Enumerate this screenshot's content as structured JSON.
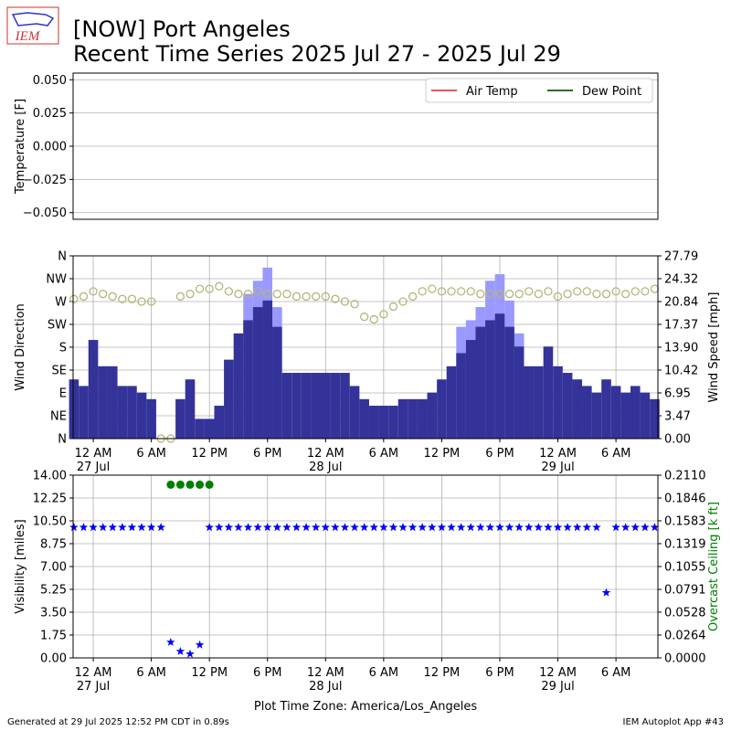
{
  "title": "[NOW] Port Angeles",
  "subtitle": "Recent Time Series 2025 Jul 27 - 2025 Jul 29",
  "logo_text": "IEM",
  "footer_left": "Generated at 29 Jul 2025 12:52 PM CDT in 0.89s",
  "footer_right": "IEM Autoplot App #43",
  "chart_data": [
    {
      "type": "line",
      "ylabel": "Temperature [F]",
      "xlim": [
        "2025-07-26 21:55",
        "2025-07-29 10:20"
      ],
      "ylim": [
        -0.055,
        0.055
      ],
      "yticks": [
        {
          "value": -0.05,
          "label": "−0.050"
        },
        {
          "value": -0.025,
          "label": "−0.025"
        },
        {
          "value": 0,
          "label": "0.000"
        },
        {
          "value": 0.025,
          "label": "0.025"
        },
        {
          "value": 0.05,
          "label": "0.050"
        }
      ],
      "grid": true,
      "legend": "upper right",
      "series": [
        {
          "name": "Air Temp",
          "color": "#e15759"
        },
        {
          "name": "Dew Point",
          "color": "#2d6a2d"
        }
      ]
    },
    {
      "type": "bar",
      "ylabel": "Wind Direction",
      "y2label": "Wind Speed [mph]",
      "xlim": [
        "2025-07-26 21:55",
        "2025-07-29 10:20"
      ],
      "ylim": [
        0,
        360
      ],
      "yticks": [
        {
          "value": 0,
          "label": "N"
        },
        {
          "value": 45,
          "label": "NE"
        },
        {
          "value": 90,
          "label": "E"
        },
        {
          "value": 135,
          "label": "SE"
        },
        {
          "value": 180,
          "label": "S"
        },
        {
          "value": 225,
          "label": "SW"
        },
        {
          "value": 270,
          "label": "W"
        },
        {
          "value": 315,
          "label": "NW"
        },
        {
          "value": 360,
          "label": "N"
        }
      ],
      "y2lim": [
        0,
        27.79
      ],
      "y2ticks": [
        {
          "value": 0,
          "label": "0.00"
        },
        3.47,
        6.95,
        10.42,
        {
          "value": 13.9,
          "label": "13.90"
        },
        17.37,
        20.84,
        24.32,
        27.79
      ],
      "xticks": [
        {
          "value": "2025-07-27 00:00",
          "label": "12 AM\n27 Jul"
        },
        {
          "value": "2025-07-27 06:00",
          "label": "6 AM"
        },
        {
          "value": "2025-07-27 12:00",
          "label": "12 PM"
        },
        {
          "value": "2025-07-27 18:00",
          "label": "6 PM"
        },
        {
          "value": "2025-07-28 00:00",
          "label": "12 AM\n28 Jul"
        },
        {
          "value": "2025-07-28 06:00",
          "label": "6 AM"
        },
        {
          "value": "2025-07-28 12:00",
          "label": "12 PM"
        },
        {
          "value": "2025-07-28 18:00",
          "label": "6 PM"
        },
        {
          "value": "2025-07-29 00:00",
          "label": "12 AM\n29 Jul"
        },
        {
          "value": "2025-07-29 06:00",
          "label": "6 AM"
        }
      ],
      "grid": true,
      "x": [
        "2025-07-26 22:00",
        "2025-07-26 23:00",
        "2025-07-27 00:00",
        "2025-07-27 01:00",
        "2025-07-27 02:00",
        "2025-07-27 03:00",
        "2025-07-27 04:00",
        "2025-07-27 05:00",
        "2025-07-27 06:00",
        "2025-07-27 07:00",
        "2025-07-27 08:00",
        "2025-07-27 09:00",
        "2025-07-27 10:00",
        "2025-07-27 11:00",
        "2025-07-27 12:00",
        "2025-07-27 13:00",
        "2025-07-27 14:00",
        "2025-07-27 15:00",
        "2025-07-27 16:00",
        "2025-07-27 17:00",
        "2025-07-27 18:00",
        "2025-07-27 19:00",
        "2025-07-27 20:00",
        "2025-07-27 21:00",
        "2025-07-27 22:00",
        "2025-07-27 23:00",
        "2025-07-28 00:00",
        "2025-07-28 01:00",
        "2025-07-28 02:00",
        "2025-07-28 03:00",
        "2025-07-28 04:00",
        "2025-07-28 05:00",
        "2025-07-28 06:00",
        "2025-07-28 07:00",
        "2025-07-28 08:00",
        "2025-07-28 09:00",
        "2025-07-28 10:00",
        "2025-07-28 11:00",
        "2025-07-28 12:00",
        "2025-07-28 13:00",
        "2025-07-28 14:00",
        "2025-07-28 15:00",
        "2025-07-28 16:00",
        "2025-07-28 17:00",
        "2025-07-28 18:00",
        "2025-07-28 19:00",
        "2025-07-28 20:00",
        "2025-07-28 21:00",
        "2025-07-28 22:00",
        "2025-07-28 23:00",
        "2025-07-29 00:00",
        "2025-07-29 01:00",
        "2025-07-29 02:00",
        "2025-07-29 03:00",
        "2025-07-29 04:00",
        "2025-07-29 05:00",
        "2025-07-29 06:00",
        "2025-07-29 07:00",
        "2025-07-29 08:00",
        "2025-07-29 09:00",
        "2025-07-29 10:00"
      ],
      "series": [
        {
          "type": "bar",
          "axis": "y2",
          "color": "#9999ff",
          "values": [
            null,
            null,
            null,
            null,
            null,
            null,
            null,
            null,
            null,
            null,
            null,
            null,
            null,
            null,
            null,
            null,
            null,
            null,
            22,
            24,
            26,
            20,
            null,
            null,
            null,
            null,
            null,
            null,
            null,
            null,
            null,
            null,
            null,
            null,
            null,
            null,
            null,
            null,
            null,
            null,
            17,
            18,
            20,
            24,
            25,
            21,
            16,
            null,
            null,
            null,
            null,
            null,
            null,
            null,
            null,
            null,
            null,
            null,
            null,
            null,
            null
          ]
        },
        {
          "type": "bar",
          "axis": "y2",
          "color": "#333399",
          "values": [
            9,
            8,
            15,
            11,
            11,
            8,
            8,
            7,
            6,
            0,
            0,
            6,
            9,
            3,
            3,
            5,
            12,
            16,
            18,
            20,
            21,
            17,
            10,
            10,
            10,
            10,
            10,
            10,
            10,
            8,
            6,
            5,
            5,
            5,
            6,
            6,
            6,
            7,
            9,
            11,
            13,
            15,
            17,
            18,
            19,
            17,
            14,
            11,
            11,
            14,
            11,
            10,
            9,
            8,
            7,
            9,
            8,
            7,
            8,
            7,
            6
          ]
        },
        {
          "type": "scatter",
          "marker": "open-circle",
          "color": "#b5b57a",
          "values": [
            275,
            280,
            290,
            285,
            280,
            275,
            275,
            270,
            270,
            0,
            0,
            280,
            285,
            295,
            295,
            300,
            290,
            285,
            285,
            290,
            285,
            285,
            285,
            280,
            280,
            280,
            280,
            275,
            270,
            265,
            240,
            235,
            245,
            260,
            270,
            280,
            290,
            295,
            290,
            290,
            290,
            290,
            285,
            285,
            285,
            285,
            285,
            290,
            285,
            290,
            280,
            285,
            290,
            290,
            285,
            285,
            290,
            285,
            290,
            290,
            295
          ]
        }
      ]
    },
    {
      "type": "scatter",
      "ylabel": "Visibility [miles]",
      "y2label": "Overcast Ceiling [k ft]",
      "y2label_color": "#008000",
      "xlabel": "Plot Time Zone: America/Los_Angeles",
      "xlim": [
        "2025-07-26 21:55",
        "2025-07-29 10:20"
      ],
      "ylim": [
        0,
        14
      ],
      "yticks": [
        {
          "value": 0,
          "label": "0.00"
        },
        1.75,
        {
          "value": 3.5,
          "label": "3.50"
        },
        5.25,
        {
          "value": 7,
          "label": "7.00"
        },
        8.75,
        {
          "value": 10.5,
          "label": "10.50"
        },
        12.25,
        {
          "value": 14,
          "label": "14.00"
        }
      ],
      "y2lim": [
        0,
        0.211
      ],
      "y2ticks": [
        {
          "value": 0,
          "label": "0.0000"
        },
        0.0264,
        0.0528,
        0.0791,
        0.1055,
        0.1319,
        0.1583,
        0.1846,
        {
          "value": 0.211,
          "label": "0.2110"
        }
      ],
      "xticks": [
        {
          "value": "2025-07-27 00:00",
          "label": "12 AM\n27 Jul"
        },
        {
          "value": "2025-07-27 06:00",
          "label": "6 AM"
        },
        {
          "value": "2025-07-27 12:00",
          "label": "12 PM"
        },
        {
          "value": "2025-07-27 18:00",
          "label": "6 PM"
        },
        {
          "value": "2025-07-28 00:00",
          "label": "12 AM\n28 Jul"
        },
        {
          "value": "2025-07-28 06:00",
          "label": "6 AM"
        },
        {
          "value": "2025-07-28 12:00",
          "label": "12 PM"
        },
        {
          "value": "2025-07-28 18:00",
          "label": "6 PM"
        },
        {
          "value": "2025-07-29 00:00",
          "label": "12 AM\n29 Jul"
        },
        {
          "value": "2025-07-29 06:00",
          "label": "6 AM"
        }
      ],
      "grid": true,
      "x": [
        "2025-07-26 22:00",
        "2025-07-26 23:00",
        "2025-07-27 00:00",
        "2025-07-27 01:00",
        "2025-07-27 02:00",
        "2025-07-27 03:00",
        "2025-07-27 04:00",
        "2025-07-27 05:00",
        "2025-07-27 06:00",
        "2025-07-27 07:00",
        "2025-07-27 08:00",
        "2025-07-27 09:00",
        "2025-07-27 10:00",
        "2025-07-27 11:00",
        "2025-07-27 12:00",
        "2025-07-27 13:00",
        "2025-07-27 14:00",
        "2025-07-27 15:00",
        "2025-07-27 16:00",
        "2025-07-27 17:00",
        "2025-07-27 18:00",
        "2025-07-27 19:00",
        "2025-07-27 20:00",
        "2025-07-27 21:00",
        "2025-07-27 22:00",
        "2025-07-27 23:00",
        "2025-07-28 00:00",
        "2025-07-28 01:00",
        "2025-07-28 02:00",
        "2025-07-28 03:00",
        "2025-07-28 04:00",
        "2025-07-28 05:00",
        "2025-07-28 06:00",
        "2025-07-28 07:00",
        "2025-07-28 08:00",
        "2025-07-28 09:00",
        "2025-07-28 10:00",
        "2025-07-28 11:00",
        "2025-07-28 12:00",
        "2025-07-28 13:00",
        "2025-07-28 14:00",
        "2025-07-28 15:00",
        "2025-07-28 16:00",
        "2025-07-28 17:00",
        "2025-07-28 18:00",
        "2025-07-28 19:00",
        "2025-07-28 20:00",
        "2025-07-28 21:00",
        "2025-07-28 22:00",
        "2025-07-28 23:00",
        "2025-07-29 00:00",
        "2025-07-29 01:00",
        "2025-07-29 02:00",
        "2025-07-29 03:00",
        "2025-07-29 04:00",
        "2025-07-29 05:00",
        "2025-07-29 06:00",
        "2025-07-29 07:00",
        "2025-07-29 08:00",
        "2025-07-29 09:00",
        "2025-07-29 10:00"
      ],
      "series": [
        {
          "type": "scatter",
          "marker": "star",
          "color": "#0000ff",
          "values": [
            10,
            10,
            10,
            10,
            10,
            10,
            10,
            10,
            10,
            10,
            1.2,
            0.5,
            0.3,
            1,
            10,
            10,
            10,
            10,
            10,
            10,
            10,
            10,
            10,
            10,
            10,
            10,
            10,
            10,
            10,
            10,
            10,
            10,
            10,
            10,
            10,
            10,
            10,
            10,
            10,
            10,
            10,
            10,
            10,
            10,
            10,
            10,
            10,
            10,
            10,
            10,
            10,
            10,
            10,
            10,
            10,
            5,
            10,
            10,
            10,
            10,
            10
          ]
        },
        {
          "type": "scatter",
          "marker": "circle",
          "axis": "y2",
          "color": "#008000",
          "values": [
            null,
            null,
            null,
            null,
            null,
            null,
            null,
            null,
            null,
            null,
            0.2,
            0.2,
            0.2,
            0.2,
            0.2,
            null,
            null,
            null,
            null,
            null,
            null,
            null,
            null,
            null,
            null,
            null,
            null,
            null,
            null,
            null,
            null,
            null,
            null,
            null,
            null,
            null,
            null,
            null,
            null,
            null,
            null,
            null,
            null,
            null,
            null,
            null,
            null,
            null,
            null,
            null,
            null,
            null,
            null,
            null,
            null,
            null,
            null,
            null,
            null,
            null,
            null
          ]
        }
      ]
    }
  ]
}
